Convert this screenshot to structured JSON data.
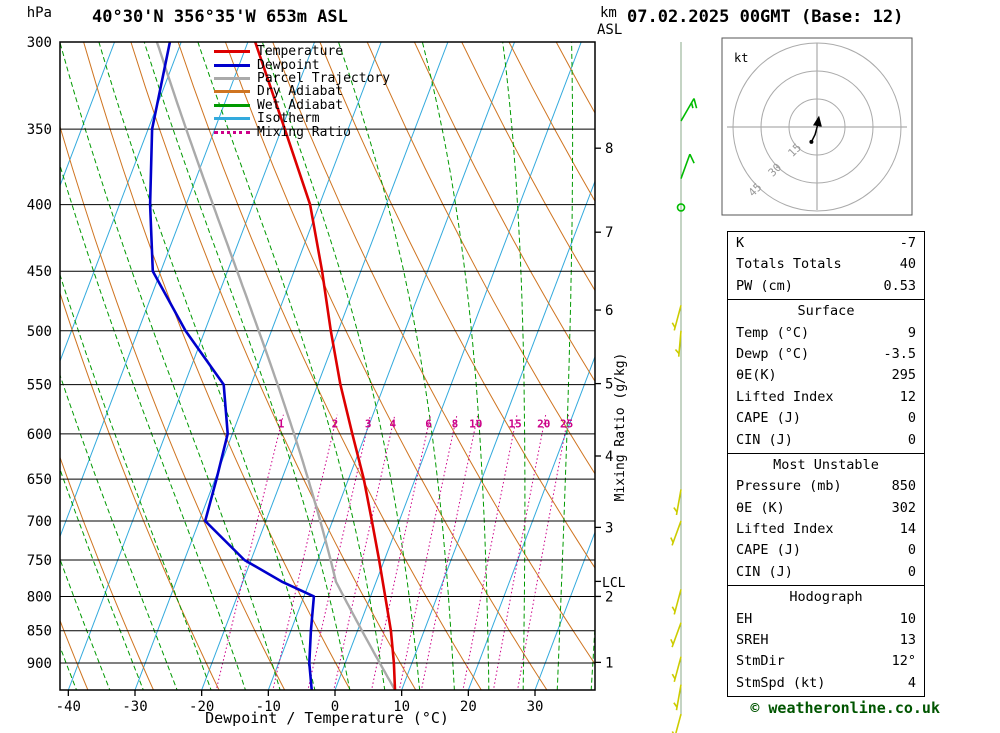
{
  "header": {
    "station_title": "40°30'N 356°35'W 653m ASL",
    "run_title": "07.02.2025 00GMT (Base: 12)"
  },
  "axes": {
    "left_unit": "hPa",
    "right_unit_top": "km",
    "right_unit_bottom": "ASL",
    "bottom_label": "Dewpoint / Temperature (°C)",
    "right_rotated_label": "Mixing Ratio (g/kg)",
    "lcl_label": "LCL",
    "pressure_ticks_hpa": [
      300,
      350,
      400,
      450,
      500,
      550,
      600,
      650,
      700,
      750,
      800,
      850,
      900
    ],
    "temperature_ticks_c": [
      -40,
      -30,
      -20,
      -10,
      0,
      10,
      20,
      30
    ],
    "km_ticks": [
      {
        "km": 1,
        "hpa": 899
      },
      {
        "km": 2,
        "hpa": 800
      },
      {
        "km": 3,
        "hpa": 708
      },
      {
        "km": 4,
        "hpa": 624
      },
      {
        "km": 5,
        "hpa": 549
      },
      {
        "km": 6,
        "hpa": 482
      },
      {
        "km": 7,
        "hpa": 420
      },
      {
        "km": 8,
        "hpa": 362
      }
    ]
  },
  "legend": {
    "items": [
      {
        "label": "Temperature",
        "color": "#dd0000",
        "dash": "solid"
      },
      {
        "label": "Dewpoint",
        "color": "#0000cc",
        "dash": "solid"
      },
      {
        "label": "Parcel Trajectory",
        "color": "#aaaaaa",
        "dash": "solid"
      },
      {
        "label": "Dry Adiabat",
        "color": "#cf7420",
        "dash": "solid"
      },
      {
        "label": "Wet Adiabat",
        "color": "#009900",
        "dash": "solid"
      },
      {
        "label": "Isotherm",
        "color": "#33aadd",
        "dash": "solid"
      },
      {
        "label": "Mixing Ratio",
        "color": "#cc0088",
        "dash": "dotted"
      }
    ]
  },
  "chart_data": {
    "type": "skewt-log-p-sounding",
    "pressure_top_hpa": 300,
    "pressure_bottom_hpa": 944,
    "temp_axis_range_c": [
      -40,
      30
    ],
    "temperature_profile_p_t": [
      [
        944,
        9
      ],
      [
        900,
        7.3
      ],
      [
        850,
        5
      ],
      [
        800,
        2.2
      ],
      [
        750,
        -0.8
      ],
      [
        700,
        -4.1
      ],
      [
        650,
        -7.7
      ],
      [
        600,
        -12
      ],
      [
        550,
        -16.6
      ],
      [
        500,
        -21.1
      ],
      [
        450,
        -25.8
      ],
      [
        400,
        -31.4
      ],
      [
        350,
        -39.5
      ],
      [
        300,
        -48.9
      ]
    ],
    "dewpoint_profile_p_t": [
      [
        944,
        -3.5
      ],
      [
        900,
        -5.4
      ],
      [
        850,
        -7
      ],
      [
        800,
        -8.5
      ],
      [
        780,
        -14
      ],
      [
        750,
        -21
      ],
      [
        700,
        -29.1
      ],
      [
        650,
        -29.8
      ],
      [
        600,
        -30.7
      ],
      [
        550,
        -34.1
      ],
      [
        500,
        -42.9
      ],
      [
        450,
        -51.2
      ],
      [
        400,
        -55.4
      ],
      [
        350,
        -59.4
      ],
      [
        300,
        -61.7
      ]
    ],
    "parcel_surface": {
      "pressure_hpa": 944,
      "temp_c": 9,
      "dewp_c": -3.5
    },
    "lcl_pressure_hpa": 779,
    "isotherms_c": {
      "min": -80,
      "max": 40,
      "step": 10
    },
    "dry_adiabats_theta_k": {
      "min": 230,
      "max": 390,
      "step": 10
    },
    "wet_adiabats_t0_c": {
      "min": -60,
      "max": 40,
      "step": 5
    },
    "mixing_ratio_g_kg": [
      1,
      2,
      3,
      4,
      6,
      8,
      10,
      15,
      20,
      25
    ],
    "mixing_ratio_label_hpa": 590,
    "mixing_ratio_top_hpa": 580,
    "colors": {
      "temperature": "#dd0000",
      "dewpoint": "#0000cc",
      "parcel": "#aaaaaa",
      "dry_adiabat": "#cf7420",
      "wet_adiabat": "#009900",
      "isotherm": "#33aadd",
      "mixing_ratio": "#cc0088",
      "isobar": "#000000"
    }
  },
  "wind_profile": {
    "staff_color": "#88aa88",
    "barbs": [
      {
        "hpa": 345,
        "spd_kt": 15,
        "dir_deg": 30,
        "color": "#00bb00"
      },
      {
        "hpa": 382,
        "spd_kt": 10,
        "dir_deg": 20,
        "color": "#00bb00"
      },
      {
        "hpa": 402,
        "spd_kt": 0,
        "dir_deg": 0,
        "color": "#00bb00"
      },
      {
        "hpa": 478,
        "spd_kt": 5,
        "dir_deg": 195,
        "color": "#cccc00"
      },
      {
        "hpa": 500,
        "spd_kt": 5,
        "dir_deg": 185,
        "color": "#cccc00"
      },
      {
        "hpa": 662,
        "spd_kt": 5,
        "dir_deg": 190,
        "color": "#cccc00"
      },
      {
        "hpa": 700,
        "spd_kt": 5,
        "dir_deg": 200,
        "color": "#cccc00"
      },
      {
        "hpa": 790,
        "spd_kt": 5,
        "dir_deg": 195,
        "color": "#cccc00"
      },
      {
        "hpa": 838,
        "spd_kt": 5,
        "dir_deg": 200,
        "color": "#cccc00"
      },
      {
        "hpa": 890,
        "spd_kt": 5,
        "dir_deg": 195,
        "color": "#cccc00"
      },
      {
        "hpa": 935,
        "spd_kt": 5,
        "dir_deg": 190,
        "color": "#cccc00"
      },
      {
        "hpa": 985,
        "spd_kt": 5,
        "dir_deg": 195,
        "color": "#cccc00"
      }
    ]
  },
  "hodograph": {
    "unit_label": "kt",
    "rings_kt": [
      15,
      30,
      45
    ],
    "ring_labels": [
      "15",
      "30",
      "45"
    ],
    "trace_kt": [
      [
        -3,
        -8
      ],
      [
        -1,
        -4
      ],
      [
        0.3,
        1
      ],
      [
        0.9,
        4.9
      ]
    ],
    "storm_dir": "12°",
    "storm_spd_kt": "4"
  },
  "table": {
    "rows": [
      {
        "label": "K",
        "value": "-7"
      },
      {
        "label": "Totals Totals",
        "value": "40"
      },
      {
        "label": "PW (cm)",
        "value": "0.53"
      }
    ],
    "sections": [
      {
        "title": "Surface",
        "rows": [
          {
            "label": "Temp (°C)",
            "value": "9"
          },
          {
            "label": "Dewp (°C)",
            "value": "-3.5"
          },
          {
            "label": "θE(K)",
            "value": "295"
          },
          {
            "label": "Lifted Index",
            "value": "12"
          },
          {
            "label": "CAPE (J)",
            "value": "0"
          },
          {
            "label": "CIN (J)",
            "value": "0"
          }
        ]
      },
      {
        "title": "Most Unstable",
        "rows": [
          {
            "label": "Pressure (mb)",
            "value": "850"
          },
          {
            "label": "θE (K)",
            "value": "302"
          },
          {
            "label": "Lifted Index",
            "value": "14"
          },
          {
            "label": "CAPE (J)",
            "value": "0"
          },
          {
            "label": "CIN (J)",
            "value": "0"
          }
        ]
      },
      {
        "title": "Hodograph",
        "rows": [
          {
            "label": "EH",
            "value": "10"
          },
          {
            "label": "SREH",
            "value": "13"
          },
          {
            "label": "StmDir",
            "value": "12°"
          },
          {
            "label": "StmSpd (kt)",
            "value": "4"
          }
        ]
      }
    ]
  },
  "footer": {
    "copyright": "© weatheronline.co.uk"
  }
}
